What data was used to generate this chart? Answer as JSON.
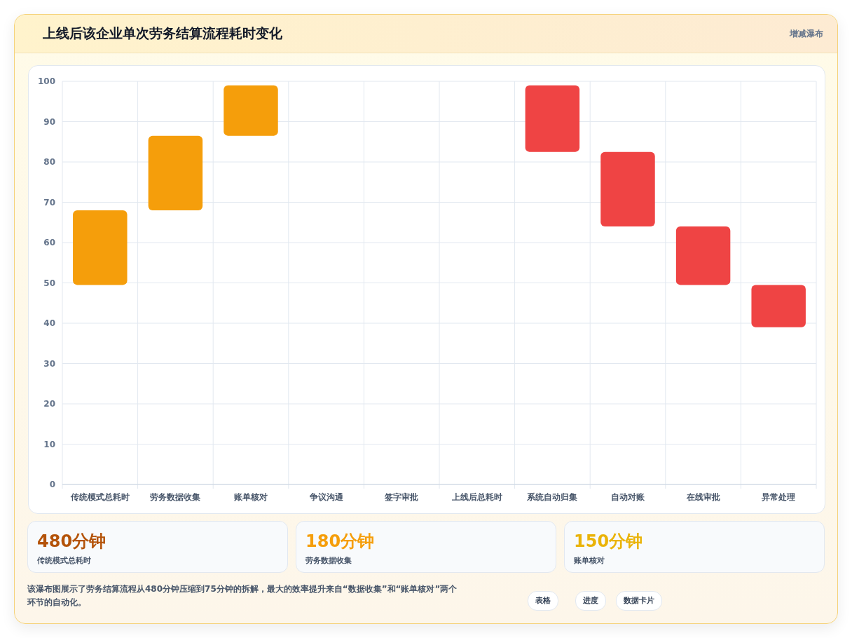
{
  "chart_data": {
    "type": "bar",
    "title": "上线后该企业单次劳务结算流程耗时变化",
    "subtitle": "增减瀑布",
    "categories": [
      "传统模式总耗时",
      "劳务数据收集",
      "账单核对",
      "争议沟通",
      "签字审批",
      "上线后总耗时",
      "系统自动归集",
      "自动对账",
      "在线审批",
      "异常处理"
    ],
    "base": [
      49.5,
      68,
      86.5,
      null,
      null,
      null,
      82.5,
      64,
      49.5,
      39
    ],
    "values": [
      18.5,
      18.5,
      12.5,
      null,
      null,
      null,
      16.5,
      18.5,
      14.5,
      10.5
    ],
    "colors": [
      "#f59e0b",
      "#f59e0b",
      "#f59e0b",
      null,
      null,
      null,
      "#ef4444",
      "#ef4444",
      "#ef4444",
      "#ef4444"
    ],
    "ylim": [
      0,
      100
    ],
    "yticks": [
      0,
      10,
      20,
      30,
      40,
      50,
      60,
      70,
      80,
      90,
      100
    ],
    "grid": true,
    "annotations": [
      "480分钟",
      "传统模式总耗时",
      "180分钟",
      "劳务数据收集",
      "150分钟",
      "账单核对",
      "该瀑布图展示了劳务结算流程从480分钟压缩到75分钟的拆解，最大的效率提升来自“数据收集”和“账单核对”两个环节的自动化。",
      "表格",
      "进度",
      "数据卡片"
    ]
  }
}
